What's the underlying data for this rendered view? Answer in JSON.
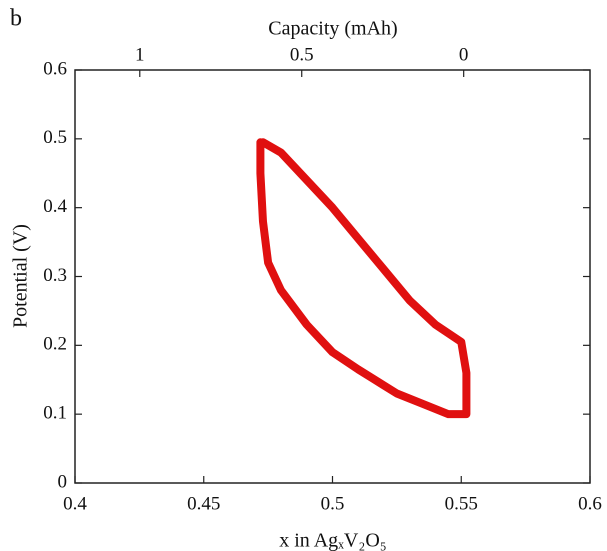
{
  "chart_data": {
    "type": "line",
    "panel_label": "b",
    "x2label": "Capacity (mAh)",
    "ylabel": "Potential (V)",
    "xlabel": "x in AgₓV₂O₅",
    "x": [
      0.473,
      0.48,
      0.49,
      0.5,
      0.51,
      0.52,
      0.53,
      0.54,
      0.55,
      0.552,
      0.552,
      0.545,
      0.535,
      0.525,
      0.51,
      0.5,
      0.49,
      0.48,
      0.475,
      0.473,
      0.472,
      0.472
    ],
    "values": [
      0.495,
      0.48,
      0.44,
      0.4,
      0.355,
      0.31,
      0.265,
      0.23,
      0.205,
      0.16,
      0.1,
      0.1,
      0.115,
      0.13,
      0.165,
      0.19,
      0.23,
      0.28,
      0.32,
      0.38,
      0.45,
      0.495
    ],
    "color": "#e01010",
    "xlim": [
      0.4,
      0.6
    ],
    "xticks": [
      0.4,
      0.45,
      0.5,
      0.55,
      0.6
    ],
    "ylim": [
      0,
      0.6
    ],
    "yticks": [
      0,
      0.1,
      0.2,
      0.3,
      0.4,
      0.5,
      0.6
    ],
    "x2lim": [
      1.2,
      -0.39
    ],
    "x2ticks": [
      1,
      0.5,
      0
    ]
  }
}
